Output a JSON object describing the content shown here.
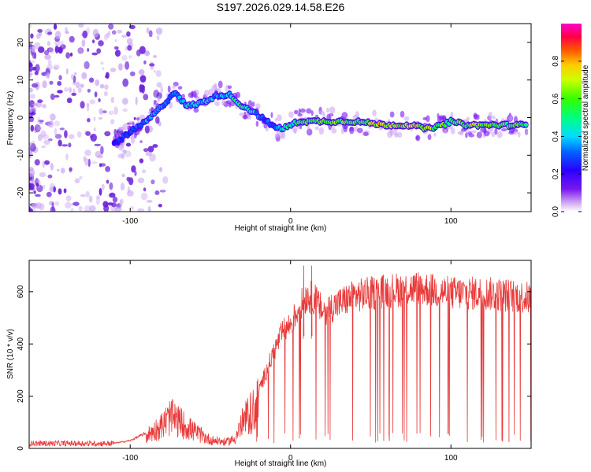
{
  "title": "S197.2026.029.14.58.E26",
  "colors": {
    "snr_line": "#e83a3a",
    "scatter_purple": "#6a1fd8",
    "axis": "#000000"
  },
  "chart_data": [
    {
      "type": "heatmap",
      "name": "spectrogram",
      "xlabel": "Height of straight line (km)",
      "ylabel": "Frequency (Hz)",
      "xlim": [
        -163,
        150
      ],
      "ylim": [
        -25,
        25
      ],
      "xticks": [
        -100,
        0,
        100
      ],
      "yticks": [
        -20,
        -10,
        0,
        10,
        20
      ],
      "colorbar": {
        "label": "Normalized spectral amplitude",
        "range": [
          0,
          1
        ],
        "ticks": [
          "0.0",
          "0.2",
          "0.4",
          "0.6",
          "0.8"
        ],
        "tick_values": [
          0.0,
          0.2,
          0.4,
          0.6,
          0.8
        ]
      },
      "ridge": {
        "x": [
          -110,
          -100,
          -90,
          -80,
          -72,
          -65,
          -55,
          -45,
          -38,
          -30,
          -25,
          -18,
          -12,
          -5,
          0,
          5,
          20,
          40,
          60,
          75,
          85,
          95,
          100,
          110,
          130,
          148
        ],
        "freq": [
          -7,
          -4,
          -1,
          3,
          7,
          3,
          4,
          6,
          6,
          3,
          2,
          0,
          -2,
          -3,
          -2,
          -1,
          -1,
          -1,
          -2,
          -2,
          -3,
          -2,
          -1,
          -2,
          -2,
          -2
        ],
        "amplitude": [
          0.25,
          0.3,
          0.35,
          0.35,
          0.3,
          0.4,
          0.4,
          0.35,
          0.45,
          0.5,
          0.45,
          0.3,
          0.3,
          0.45,
          0.5,
          0.55,
          0.6,
          0.6,
          0.75,
          0.7,
          0.7,
          0.6,
          0.55,
          0.65,
          0.6,
          0.55
        ]
      }
    },
    {
      "type": "line",
      "name": "snr",
      "xlabel": "Height of straight line (km)",
      "ylabel": "SNR (10 * v/v)",
      "xlim": [
        -163,
        150
      ],
      "ylim": [
        0,
        720
      ],
      "xticks": [
        -100,
        0,
        100
      ],
      "yticks": [
        0,
        200,
        400,
        600
      ],
      "envelope": {
        "x": [
          -163,
          -110,
          -100,
          -90,
          -80,
          -75,
          -68,
          -60,
          -50,
          -40,
          -35,
          -30,
          -25,
          -20,
          -15,
          -10,
          -5,
          0,
          5,
          10,
          15,
          20,
          30,
          40,
          50,
          60,
          80,
          100,
          120,
          140,
          150
        ],
        "y": [
          20,
          20,
          30,
          60,
          110,
          150,
          120,
          80,
          40,
          30,
          45,
          120,
          170,
          220,
          300,
          380,
          450,
          480,
          540,
          590,
          580,
          530,
          560,
          590,
          600,
          610,
          620,
          600,
          600,
          590,
          580
        ]
      },
      "spikes": [
        {
          "x": 8,
          "y": 700
        },
        {
          "x": 13,
          "y": 700
        }
      ]
    }
  ]
}
